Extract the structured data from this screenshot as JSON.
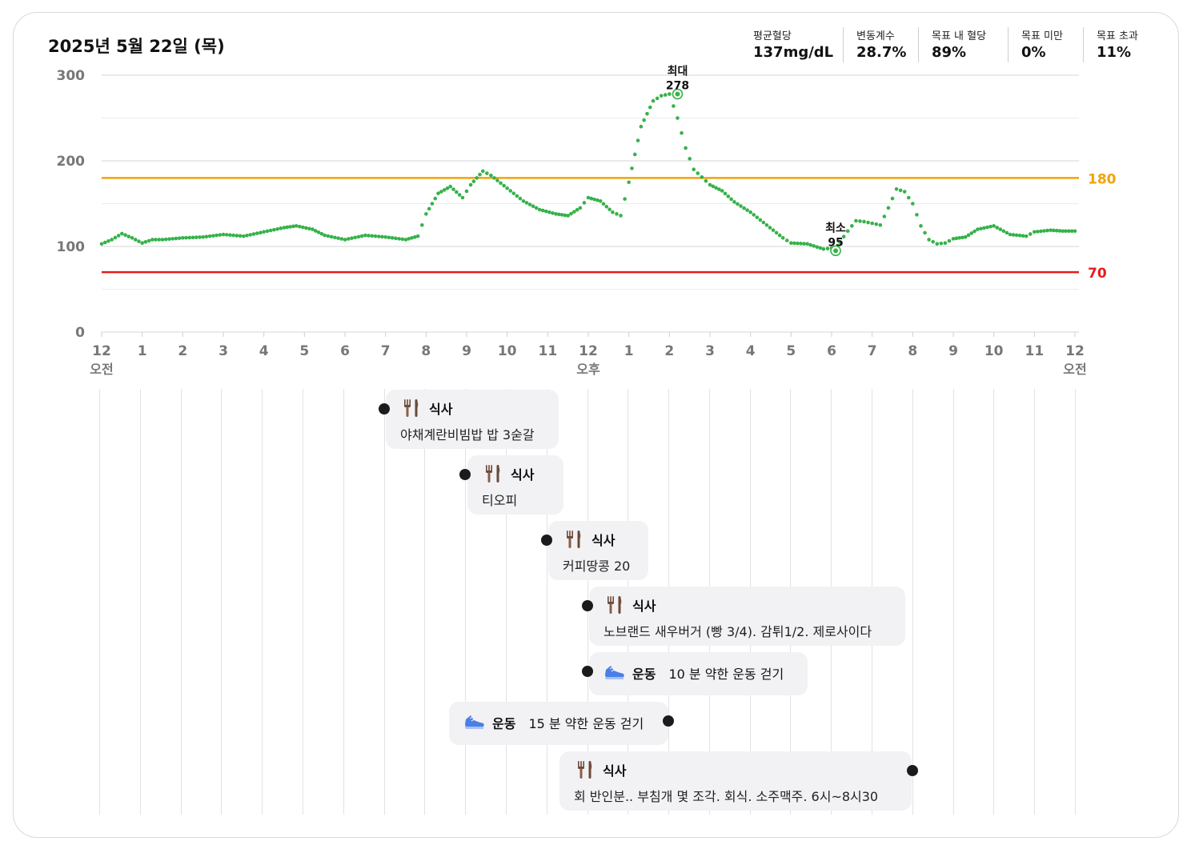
{
  "header": {
    "title": "2025년 5월 22일 (목)",
    "stats": [
      {
        "label": "평균혈당",
        "value": "137mg/dL"
      },
      {
        "label": "변동계수",
        "value": "28.7%"
      },
      {
        "label": "목표 내 혈당",
        "value": "89%"
      },
      {
        "label": "목표 미만",
        "value": "0%"
      },
      {
        "label": "목표 초과",
        "value": "11%"
      }
    ]
  },
  "chart_data": {
    "type": "scatter",
    "x_unit": "hour of day",
    "xlim": [
      0,
      24
    ],
    "ylim": [
      0,
      300
    ],
    "y_ticks": [
      0,
      100,
      200,
      300
    ],
    "x_tick_labels": [
      "12",
      "1",
      "2",
      "3",
      "4",
      "5",
      "6",
      "7",
      "8",
      "9",
      "10",
      "11",
      "12",
      "1",
      "2",
      "3",
      "4",
      "5",
      "6",
      "7",
      "8",
      "9",
      "10",
      "11",
      "12"
    ],
    "x_sub_labels": [
      {
        "at": 0,
        "text": "오전"
      },
      {
        "at": 12,
        "text": "오후"
      },
      {
        "at": 24,
        "text": "오전"
      }
    ],
    "thresholds": [
      {
        "value": 180,
        "label": "180",
        "color": "#f0a30a"
      },
      {
        "value": 70,
        "label": "70",
        "color": "#e51c1c"
      }
    ],
    "series_color": "#36b24a",
    "glucose": {
      "x": [
        0,
        0.25,
        0.5,
        0.75,
        1,
        1.25,
        1.5,
        1.75,
        2,
        2.5,
        3,
        3.5,
        4,
        4.5,
        4.8,
        5.2,
        5.5,
        6,
        6.5,
        7,
        7.5,
        7.8,
        8,
        8.3,
        8.6,
        8.9,
        9.1,
        9.4,
        9.6,
        10,
        10.4,
        10.8,
        11.2,
        11.5,
        11.8,
        12,
        12.3,
        12.6,
        12.8,
        13,
        13.3,
        13.6,
        13.8,
        14,
        14.2,
        14.4,
        14.6,
        14.8,
        15,
        15.3,
        15.6,
        16,
        16.4,
        16.8,
        17,
        17.4,
        17.8,
        18,
        18.1,
        18.2,
        18.4,
        18.6,
        18.8,
        19,
        19.2,
        19.4,
        19.6,
        19.8,
        20,
        20.2,
        20.4,
        20.6,
        20.8,
        21,
        21.3,
        21.6,
        22,
        22.4,
        22.8,
        23,
        23.4,
        23.7,
        24
      ],
      "y": [
        103,
        108,
        115,
        110,
        104,
        108,
        108,
        109,
        110,
        111,
        114,
        112,
        117,
        122,
        124,
        120,
        113,
        108,
        113,
        111,
        108,
        112,
        138,
        162,
        170,
        157,
        172,
        188,
        183,
        168,
        153,
        143,
        138,
        136,
        145,
        157,
        153,
        140,
        136,
        175,
        240,
        270,
        276,
        278,
        250,
        215,
        190,
        181,
        172,
        165,
        152,
        140,
        125,
        110,
        104,
        103,
        97,
        98,
        95,
        105,
        118,
        130,
        129,
        127,
        125,
        145,
        167,
        164,
        150,
        124,
        108,
        103,
        104,
        109,
        111,
        120,
        124,
        114,
        112,
        117,
        119,
        118,
        118
      ]
    },
    "markers": [
      {
        "label": "최대",
        "value": "278",
        "x": 14.2,
        "y": 278
      },
      {
        "label": "최소",
        "value": "95",
        "x": 18.1,
        "y": 95
      }
    ]
  },
  "events": [
    {
      "type": "식사",
      "desc": "야채계란비빔밥 밥 3숟갈",
      "time": 7.0
    },
    {
      "type": "식사",
      "desc": "티오피",
      "time": 9.0
    },
    {
      "type": "식사",
      "desc": "커피땅콩 20",
      "time": 11.0
    },
    {
      "type": "식사",
      "desc": "노브랜드 새우버거 (빵 3/4). 감튀1/2. 제로사이다",
      "time": 12.0
    },
    {
      "type": "운동",
      "desc": "10 분 약한 운동 걷기",
      "time": 12.0
    },
    {
      "type": "운동",
      "desc": "15 분 약한 운동 걷기",
      "time": 14.0
    },
    {
      "type": "식사",
      "desc": "회 반인분.. 부침개 몇 조각. 회식. 소주맥주. 6시~8시30",
      "time": 20.0
    }
  ]
}
